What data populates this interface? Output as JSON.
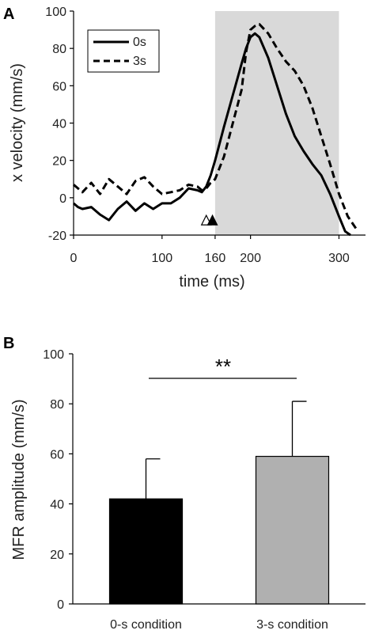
{
  "panels": {
    "a_label": "A",
    "b_label": "B"
  },
  "chart_data": [
    {
      "type": "line",
      "xlabel": "time (ms)",
      "ylabel": "x velocity (mm/s)",
      "xlim": [
        0,
        330
      ],
      "ylim": [
        -20,
        100
      ],
      "xticks": [
        0,
        100,
        160,
        200,
        300
      ],
      "yticks": [
        -20,
        0,
        20,
        40,
        60,
        80,
        100
      ],
      "shaded_region": [
        160,
        300
      ],
      "legend_position": "top-left",
      "markers": [
        {
          "name": "onset-0s",
          "x": 150,
          "y": -12,
          "fill": "#ffffff"
        },
        {
          "name": "onset-3s",
          "x": 157,
          "y": -12,
          "fill": "#000000"
        }
      ],
      "series": [
        {
          "name": "0s",
          "dash": "solid",
          "x": [
            0,
            5,
            10,
            20,
            30,
            40,
            50,
            60,
            70,
            80,
            90,
            100,
            110,
            120,
            130,
            140,
            145,
            150,
            155,
            160,
            170,
            180,
            190,
            195,
            200,
            205,
            210,
            220,
            230,
            240,
            250,
            260,
            270,
            280,
            290,
            300,
            307,
            313
          ],
          "y": [
            -3,
            -5,
            -6,
            -5,
            -9,
            -12,
            -6,
            -2,
            -7,
            -3,
            -6,
            -3,
            -3,
            0,
            5,
            4,
            3,
            6,
            12,
            20,
            38,
            55,
            72,
            80,
            86,
            88,
            86,
            75,
            60,
            45,
            33,
            25,
            18,
            12,
            2,
            -10,
            -18,
            -20
          ]
        },
        {
          "name": "3s",
          "dash": "dashed",
          "x": [
            0,
            5,
            10,
            20,
            30,
            40,
            50,
            60,
            70,
            80,
            90,
            100,
            110,
            120,
            130,
            140,
            145,
            150,
            155,
            160,
            170,
            180,
            190,
            195,
            200,
            205,
            210,
            220,
            230,
            240,
            250,
            260,
            270,
            280,
            290,
            300,
            310,
            320
          ],
          "y": [
            7,
            5,
            3,
            8,
            2,
            10,
            6,
            2,
            9,
            11,
            6,
            2,
            3,
            4,
            7,
            6,
            4,
            5,
            8,
            10,
            22,
            40,
            58,
            78,
            90,
            92,
            93,
            88,
            80,
            73,
            68,
            60,
            48,
            33,
            18,
            2,
            -10,
            -17
          ]
        }
      ]
    },
    {
      "type": "bar",
      "categories": [
        "0-s condition",
        "3-s condition"
      ],
      "values": [
        42,
        59
      ],
      "errors": [
        16,
        22
      ],
      "colors": [
        "#000000",
        "#b0b0b0"
      ],
      "ylabel": "MFR amplitude (mm/s)",
      "xlabel": "",
      "ylim": [
        0,
        100
      ],
      "yticks": [
        0,
        20,
        40,
        60,
        80,
        100
      ],
      "significance": "**"
    }
  ]
}
